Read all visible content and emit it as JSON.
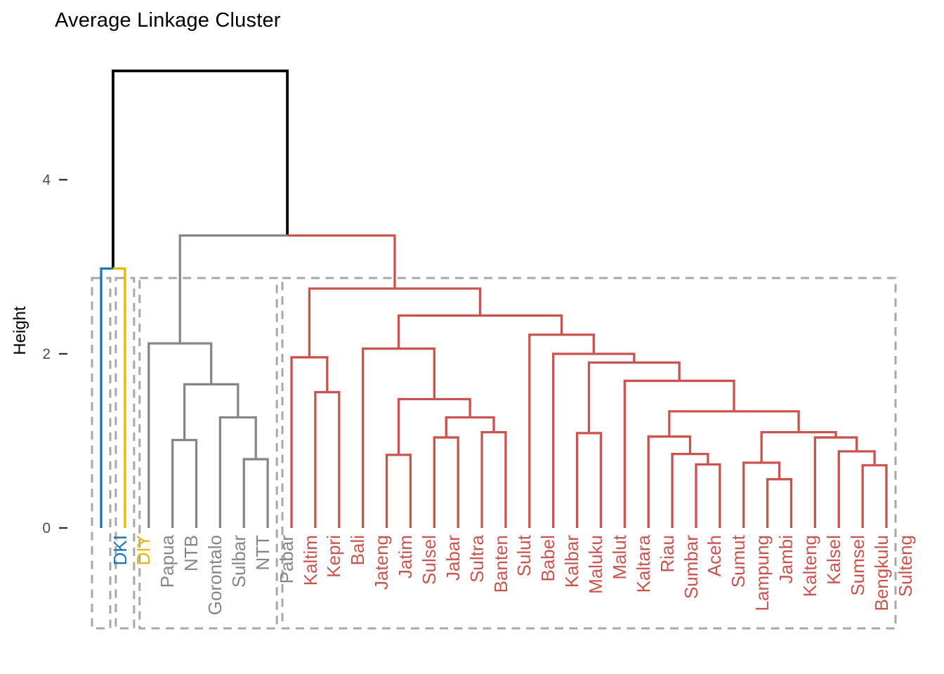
{
  "chart_data": {
    "type": "dendrogram",
    "title": "Average Linkage Cluster",
    "ylabel": "Height",
    "yticks": [
      {
        "value": 0,
        "label": "0"
      },
      {
        "value": 2,
        "label": "2"
      },
      {
        "value": 4,
        "label": "4"
      }
    ],
    "palette": {
      "blue": "#1B75BB",
      "yellow": "#E8B800",
      "gray": "#868686",
      "red": "#C9534F",
      "black": "#000000"
    },
    "box_color": "#A8A8A8",
    "tick_text_color": "#4D4D4D",
    "tick_mark_color": "#333333",
    "leaves": [
      {
        "name": "DKI",
        "cluster": "blue"
      },
      {
        "name": "DIY",
        "cluster": "yellow"
      },
      {
        "name": "Papua",
        "cluster": "gray"
      },
      {
        "name": "NTB",
        "cluster": "gray"
      },
      {
        "name": "Gorontalo",
        "cluster": "gray"
      },
      {
        "name": "Sulbar",
        "cluster": "gray"
      },
      {
        "name": "NTT",
        "cluster": "gray"
      },
      {
        "name": "Pabar",
        "cluster": "gray"
      },
      {
        "name": "Kaltim",
        "cluster": "red"
      },
      {
        "name": "Kepri",
        "cluster": "red"
      },
      {
        "name": "Bali",
        "cluster": "red"
      },
      {
        "name": "Jateng",
        "cluster": "red"
      },
      {
        "name": "Jatim",
        "cluster": "red"
      },
      {
        "name": "Sulsel",
        "cluster": "red"
      },
      {
        "name": "Jabar",
        "cluster": "red"
      },
      {
        "name": "Sultra",
        "cluster": "red"
      },
      {
        "name": "Banten",
        "cluster": "red"
      },
      {
        "name": "Sulut",
        "cluster": "red"
      },
      {
        "name": "Babel",
        "cluster": "red"
      },
      {
        "name": "Kalbar",
        "cluster": "red"
      },
      {
        "name": "Maluku",
        "cluster": "red"
      },
      {
        "name": "Malut",
        "cluster": "red"
      },
      {
        "name": "Kaltara",
        "cluster": "red"
      },
      {
        "name": "Riau",
        "cluster": "red"
      },
      {
        "name": "Sumbar",
        "cluster": "red"
      },
      {
        "name": "Aceh",
        "cluster": "red"
      },
      {
        "name": "Sumut",
        "cluster": "red"
      },
      {
        "name": "Lampung",
        "cluster": "red"
      },
      {
        "name": "Jambi",
        "cluster": "red"
      },
      {
        "name": "Kalteng",
        "cluster": "red"
      },
      {
        "name": "Kalsel",
        "cluster": "red"
      },
      {
        "name": "Sumsel",
        "cluster": "red"
      },
      {
        "name": "Bengkulu",
        "cluster": "red"
      },
      {
        "name": "Sulteng",
        "cluster": "red"
      }
    ],
    "tree": {
      "h": 5.25,
      "c": "black",
      "children": [
        {
          "h": 2.98,
          "c": "black",
          "children": [
            {
              "leaf": "DKI"
            },
            {
              "leaf": "DIY"
            }
          ]
        },
        {
          "h": 3.36,
          "c": "black",
          "children": [
            {
              "h": 2.12,
              "c": "gray",
              "children": [
                {
                  "leaf": "Papua"
                },
                {
                  "h": 1.65,
                  "c": "gray",
                  "children": [
                    {
                      "h": 1.01,
                      "c": "gray",
                      "children": [
                        {
                          "leaf": "NTB"
                        },
                        {
                          "leaf": "Gorontalo"
                        }
                      ]
                    },
                    {
                      "h": 1.27,
                      "c": "gray",
                      "children": [
                        {
                          "leaf": "Sulbar"
                        },
                        {
                          "h": 0.79,
                          "c": "gray",
                          "children": [
                            {
                              "leaf": "NTT"
                            },
                            {
                              "leaf": "Pabar"
                            }
                          ]
                        }
                      ]
                    }
                  ]
                }
              ]
            },
            {
              "h": 2.75,
              "c": "red",
              "children": [
                {
                  "h": 1.96,
                  "c": "red",
                  "children": [
                    {
                      "leaf": "Kaltim"
                    },
                    {
                      "h": 1.56,
                      "c": "red",
                      "children": [
                        {
                          "leaf": "Kepri"
                        },
                        {
                          "leaf": "Bali"
                        }
                      ]
                    }
                  ]
                },
                {
                  "h": 2.44,
                  "c": "red",
                  "children": [
                    {
                      "h": 2.06,
                      "c": "red",
                      "children": [
                        {
                          "leaf": "Jateng"
                        },
                        {
                          "h": 1.48,
                          "c": "red",
                          "children": [
                            {
                              "h": 0.84,
                              "c": "red",
                              "children": [
                                {
                                  "leaf": "Jatim"
                                },
                                {
                                  "leaf": "Sulsel"
                                }
                              ]
                            },
                            {
                              "h": 1.27,
                              "c": "red",
                              "children": [
                                {
                                  "h": 1.04,
                                  "c": "red",
                                  "children": [
                                    {
                                      "leaf": "Jabar"
                                    },
                                    {
                                      "leaf": "Sultra"
                                    }
                                  ]
                                },
                                {
                                  "h": 1.1,
                                  "c": "red",
                                  "children": [
                                    {
                                      "leaf": "Banten"
                                    },
                                    {
                                      "leaf": "Sulut"
                                    }
                                  ]
                                }
                              ]
                            }
                          ]
                        }
                      ]
                    },
                    {
                      "h": 2.22,
                      "c": "red",
                      "children": [
                        {
                          "leaf": "Babel"
                        },
                        {
                          "h": 2.0,
                          "c": "red",
                          "children": [
                            {
                              "leaf": "Kalbar"
                            },
                            {
                              "h": 1.9,
                              "c": "red",
                              "children": [
                                {
                                  "h": 1.09,
                                  "c": "red",
                                  "children": [
                                    {
                                      "leaf": "Maluku"
                                    },
                                    {
                                      "leaf": "Malut"
                                    }
                                  ]
                                },
                                {
                                  "h": 1.69,
                                  "c": "red",
                                  "children": [
                                    {
                                      "leaf": "Kaltara"
                                    },
                                    {
                                      "h": 1.34,
                                      "c": "red",
                                      "children": [
                                        {
                                          "h": 1.05,
                                          "c": "red",
                                          "children": [
                                            {
                                              "leaf": "Riau"
                                            },
                                            {
                                              "h": 0.85,
                                              "c": "red",
                                              "children": [
                                                {
                                                  "leaf": "Sumbar"
                                                },
                                                {
                                                  "h": 0.73,
                                                  "c": "red",
                                                  "children": [
                                                    {
                                                      "leaf": "Aceh"
                                                    },
                                                    {
                                                      "leaf": "Sumut"
                                                    }
                                                  ]
                                                }
                                              ]
                                            }
                                          ]
                                        },
                                        {
                                          "h": 1.1,
                                          "c": "red",
                                          "children": [
                                            {
                                              "h": 0.75,
                                              "c": "red",
                                              "children": [
                                                {
                                                  "leaf": "Lampung"
                                                },
                                                {
                                                  "h": 0.56,
                                                  "c": "red",
                                                  "children": [
                                                    {
                                                      "leaf": "Jambi"
                                                    },
                                                    {
                                                      "leaf": "Kalteng"
                                                    }
                                                  ]
                                                }
                                              ]
                                            },
                                            {
                                              "h": 1.04,
                                              "c": "red",
                                              "children": [
                                                {
                                                  "leaf": "Kalsel"
                                                },
                                                {
                                                  "h": 0.88,
                                                  "c": "red",
                                                  "children": [
                                                    {
                                                      "leaf": "Sumsel"
                                                    },
                                                    {
                                                      "h": 0.72,
                                                      "c": "red",
                                                      "children": [
                                                        {
                                                          "leaf": "Bengkulu"
                                                        },
                                                        {
                                                          "leaf": "Sulteng"
                                                        }
                                                      ]
                                                    }
                                                  ]
                                                }
                                              ]
                                            }
                                          ]
                                        }
                                      ]
                                    }
                                  ]
                                }
                              ]
                            }
                          ]
                        }
                      ]
                    }
                  ]
                }
              ]
            }
          ]
        }
      ]
    },
    "cluster_boxes": [
      {
        "from": "DKI",
        "to": "DKI"
      },
      {
        "from": "DIY",
        "to": "DIY"
      },
      {
        "from": "Papua",
        "to": "Pabar"
      },
      {
        "from": "Kaltim",
        "to": "Sulteng"
      }
    ]
  }
}
